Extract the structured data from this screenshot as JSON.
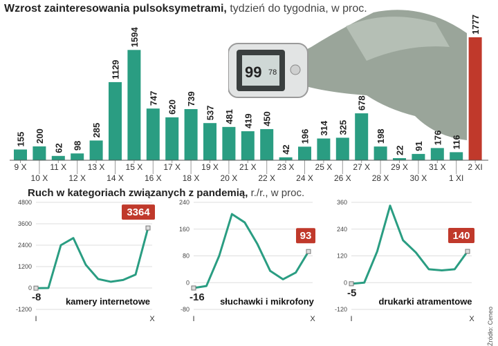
{
  "header": {
    "title_bold": "Wzrost zainteresowania pulsoksymetrami,",
    "title_rest": " tydzień do tygodnia, w proc.",
    "subtitle_bold": "Ruch w kategoriach związanych z pandemią,",
    "subtitle_rest": " r./r., w proc."
  },
  "source": "Źródło: Ceneo",
  "device_display": {
    "spo2": "99",
    "pulse": "78"
  },
  "colors": {
    "teal": "#2a9d82",
    "red": "#c0392b",
    "label_bg": "#c0392b"
  },
  "chart_data": [
    {
      "type": "bar",
      "categories": [
        "9 X",
        "10 X",
        "11 X",
        "12 X",
        "13 X",
        "14 X",
        "15 X",
        "16 X",
        "17 X",
        "18 X",
        "19 X",
        "20 X",
        "21 X",
        "22 X",
        "23 X",
        "24 X",
        "25 X",
        "26 X",
        "27 X",
        "28 X",
        "29 X",
        "30 X",
        "31 X",
        "1 XI",
        "2 XI"
      ],
      "values": [
        155,
        200,
        62,
        98,
        285,
        1129,
        1594,
        747,
        620,
        739,
        537,
        481,
        419,
        450,
        42,
        196,
        314,
        325,
        678,
        198,
        22,
        91,
        176,
        116,
        1777
      ],
      "highlight_index": 24,
      "title": "Wzrost zainteresowania pulsoksymetrami, tydzień do tygodnia, w proc."
    },
    {
      "type": "line",
      "label": "kamery internetowe",
      "y_ticks": [
        "4800",
        "3600",
        "2400",
        "1200",
        "0",
        "-1200"
      ],
      "ylim": [
        -1200,
        4800
      ],
      "x_ticks": [
        "I",
        "X"
      ],
      "values": [
        -8,
        0,
        2400,
        2800,
        1300,
        500,
        350,
        450,
        750,
        3364
      ],
      "first_label": "-8",
      "last_label": "3364"
    },
    {
      "type": "line",
      "label": "słuchawki i mikrofony",
      "y_ticks": [
        "240",
        "160",
        "80",
        "0",
        "-80"
      ],
      "ylim": [
        -80,
        240
      ],
      "x_ticks": [
        "I",
        "X"
      ],
      "values": [
        -16,
        -10,
        80,
        205,
        180,
        115,
        35,
        10,
        30,
        93
      ],
      "first_label": "-16",
      "last_label": "93"
    },
    {
      "type": "line",
      "label": "drukarki atramentowe",
      "y_ticks": [
        "360",
        "240",
        "120",
        "0",
        "-120"
      ],
      "ylim": [
        -120,
        360
      ],
      "x_ticks": [
        "I",
        "X"
      ],
      "values": [
        -5,
        0,
        140,
        345,
        190,
        135,
        60,
        55,
        60,
        140
      ],
      "first_label": "-5",
      "last_label": "140"
    }
  ]
}
